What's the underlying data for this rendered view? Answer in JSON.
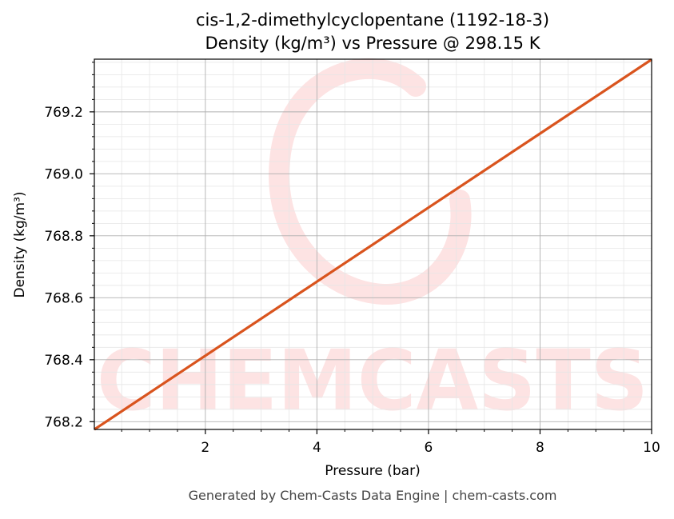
{
  "chart_data": {
    "type": "line",
    "title": "cis-1,2-dimethylcyclopentane (1192-18-3)",
    "subtitle": "Density (kg/m³) vs Pressure @ 298.15 K",
    "xlabel": "Pressure (bar)",
    "ylabel": "Density (kg/m³)",
    "xlim": [
      0.01,
      10
    ],
    "ylim": [
      768.175,
      769.37
    ],
    "x_ticks": [
      2,
      4,
      6,
      8,
      10
    ],
    "x_tick_labels": [
      "2",
      "4",
      "6",
      "8",
      "10"
    ],
    "y_ticks": [
      768.2,
      768.4,
      768.6,
      768.8,
      769.0,
      769.2
    ],
    "y_tick_labels": [
      "768.2",
      "768.4",
      "768.6",
      "768.8",
      "769.0",
      "769.2"
    ],
    "grid": true,
    "series": [
      {
        "color": "#d9541e",
        "x": [
          0.01,
          2,
          4,
          6,
          8,
          10
        ],
        "y": [
          768.175,
          768.413,
          768.652,
          768.891,
          769.13,
          769.369
        ]
      }
    ]
  },
  "watermark": {
    "text": "CHEMCASTS",
    "color": "#fde3e3"
  },
  "footer": "Generated by Chem-Casts Data Engine | chem-casts.com"
}
